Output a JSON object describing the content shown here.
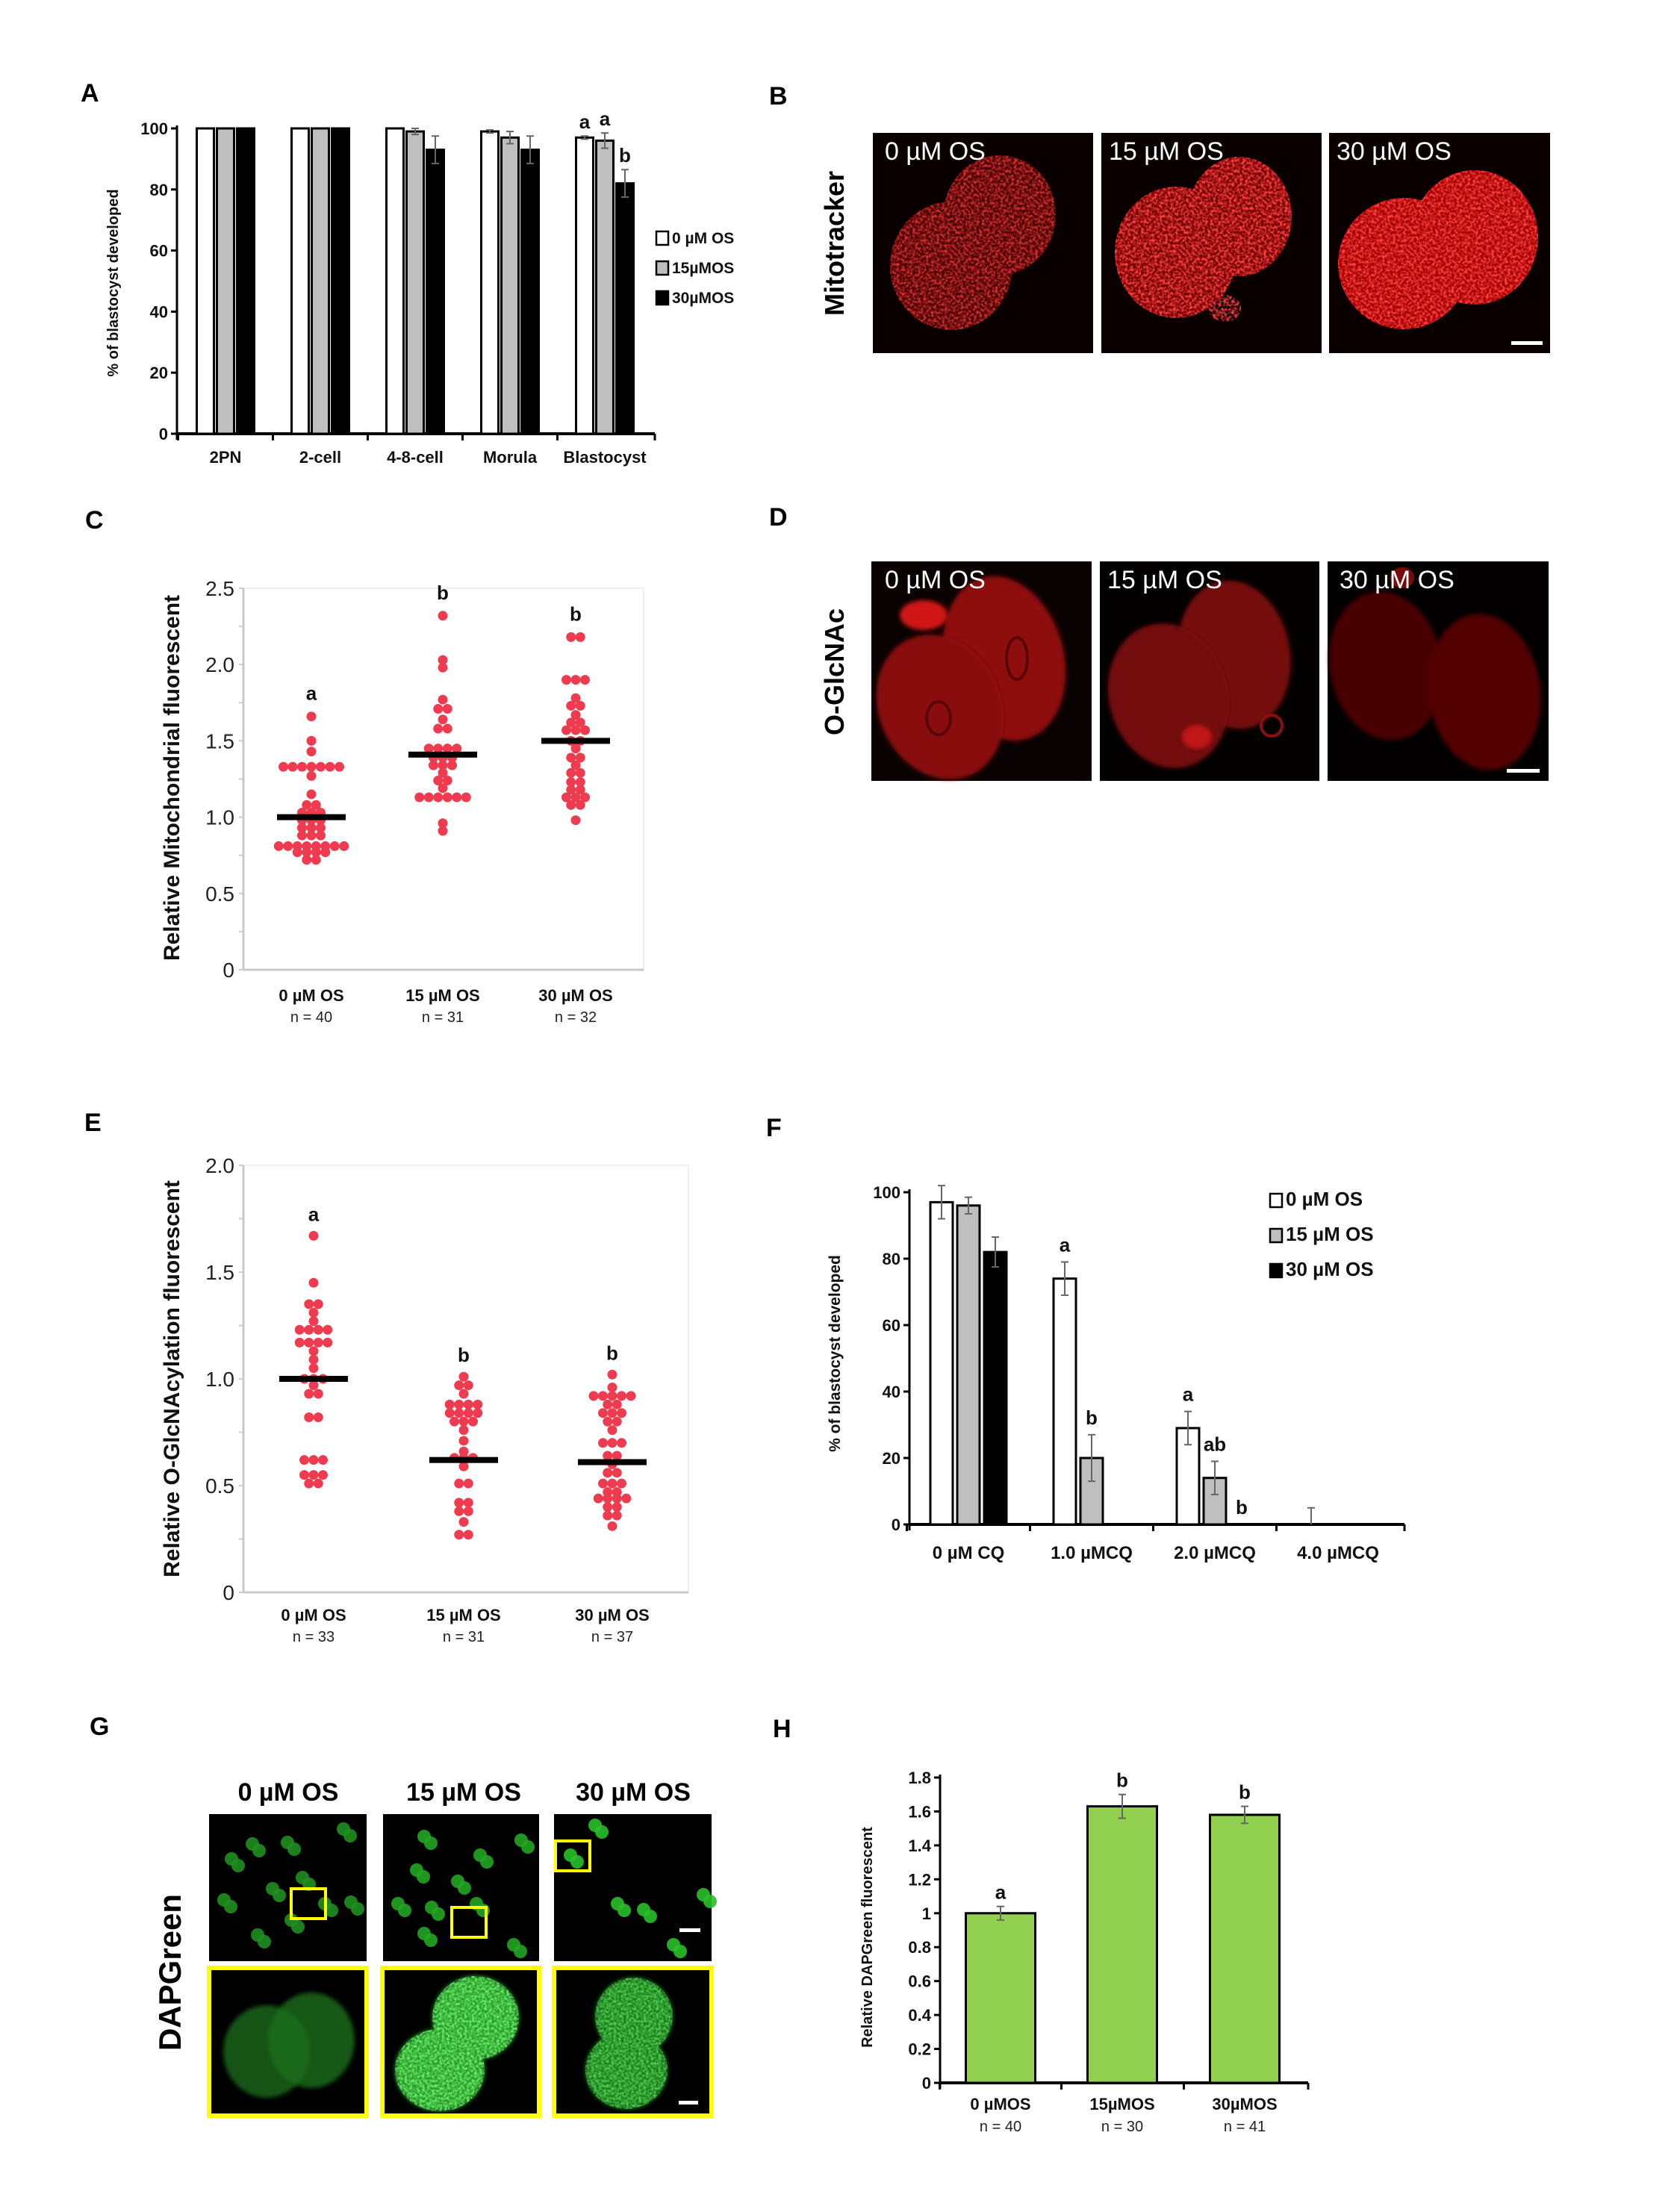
{
  "panels": {
    "A": "A",
    "B": "B",
    "C": "C",
    "D": "D",
    "E": "E",
    "F": "F",
    "G": "G",
    "H": "H"
  },
  "images": {
    "B": {
      "row_label": "Mitotracker",
      "conditions": [
        "0 µM OS",
        "15 µM OS",
        "30 µM OS"
      ],
      "stain_color": "#e00000"
    },
    "D": {
      "row_label": "O-GlcNAc",
      "conditions": [
        "0 µM OS",
        "15 µM OS",
        "30 µM OS"
      ],
      "stain_color": "#a00000"
    },
    "G": {
      "row_label": "DAPGreen",
      "conditions": [
        "0 µM OS",
        "15 µM OS",
        "30 µM OS"
      ],
      "stain_color": "#22c422",
      "inset_border_color": "#ffff00"
    }
  },
  "chart_data": [
    {
      "panel": "A",
      "type": "bar",
      "ylabel": "% of blastocyst developed",
      "ylim": [
        0,
        100
      ],
      "yticks": [
        0,
        20,
        40,
        60,
        80,
        100
      ],
      "ytick_labels": [
        "0",
        "20",
        "40",
        "60",
        "80",
        "100"
      ],
      "categories": [
        "2PN",
        "2-cell",
        "4-8-cell",
        "Morula",
        "Blastocyst"
      ],
      "legend_placement": "right",
      "series": [
        {
          "name": "0 µM OS",
          "color": "#ffffff",
          "values": [
            100,
            100,
            100,
            99,
            97
          ],
          "errors": [
            0,
            0,
            0,
            0.5,
            0.5
          ]
        },
        {
          "name": "15µMOS",
          "color": "#bfbfbf",
          "values": [
            100,
            100,
            99,
            97,
            96
          ],
          "errors": [
            0,
            0,
            1,
            2,
            2.5
          ]
        },
        {
          "name": "30µMOS",
          "color": "#000000",
          "values": [
            100,
            100,
            93,
            93,
            82
          ],
          "errors": [
            0,
            0,
            4.5,
            4.5,
            4.5
          ]
        }
      ],
      "letters": [
        {
          "category": 4,
          "series": 0,
          "text": "a"
        },
        {
          "category": 4,
          "series": 1,
          "text": "a"
        },
        {
          "category": 4,
          "series": 2,
          "text": "b"
        }
      ]
    },
    {
      "panel": "C",
      "type": "scatter",
      "ylabel": "Relative Mitochondrial fluorescent",
      "ylim": [
        0,
        2.5
      ],
      "yticks": [
        0,
        0.5,
        1.0,
        1.5,
        2.0,
        2.5
      ],
      "ytick_labels": [
        "0",
        "0.5",
        "1.0",
        "1.5",
        "2.0",
        "2.5"
      ],
      "categories": [
        "0 µM OS",
        "15 µM OS",
        "30 µM OS"
      ],
      "n_labels": [
        "n = 40",
        "n = 31",
        "n = 32"
      ],
      "point_color": "#ee3b4f",
      "groups": [
        {
          "mean": 1.0,
          "letter": "a",
          "values": [
            1.66,
            1.5,
            1.43,
            1.33,
            1.33,
            1.33,
            1.33,
            1.33,
            1.33,
            1.33,
            1.27,
            1.15,
            1.08,
            1.08,
            1.03,
            1.03,
            1.03,
            0.98,
            0.98,
            0.98,
            0.93,
            0.93,
            0.93,
            0.88,
            0.88,
            0.88,
            0.81,
            0.81,
            0.81,
            0.81,
            0.81,
            0.81,
            0.81,
            0.81,
            0.77,
            0.77,
            0.77,
            0.77,
            0.72,
            0.72
          ]
        },
        {
          "mean": 1.41,
          "letter": "b",
          "values": [
            2.32,
            2.03,
            1.98,
            1.77,
            1.71,
            1.71,
            1.64,
            1.58,
            1.58,
            1.45,
            1.45,
            1.45,
            1.45,
            1.39,
            1.39,
            1.39,
            1.34,
            1.34,
            1.34,
            1.29,
            1.24,
            1.24,
            1.19,
            1.13,
            1.13,
            1.13,
            1.13,
            1.13,
            1.13,
            0.96,
            0.91
          ]
        },
        {
          "mean": 1.5,
          "letter": "b",
          "values": [
            2.18,
            2.18,
            1.9,
            1.9,
            1.9,
            1.78,
            1.73,
            1.73,
            1.67,
            1.62,
            1.62,
            1.57,
            1.57,
            1.57,
            1.5,
            1.5,
            1.45,
            1.39,
            1.39,
            1.34,
            1.29,
            1.29,
            1.23,
            1.23,
            1.18,
            1.18,
            1.13,
            1.13,
            1.13,
            1.08,
            1.08,
            0.98
          ]
        }
      ]
    },
    {
      "panel": "E",
      "type": "scatter",
      "ylabel": "Relative O-GlcNAcylation fluorescent",
      "ylim": [
        0,
        2.0
      ],
      "yticks": [
        0,
        0.5,
        1.0,
        1.5,
        2.0
      ],
      "ytick_labels": [
        "0",
        "0.5",
        "1.0",
        "1.5",
        "2.0"
      ],
      "categories": [
        "0 µM OS",
        "15 µM OS",
        "30 µM OS"
      ],
      "n_labels": [
        "n = 33",
        "n = 31",
        "n = 37"
      ],
      "point_color": "#ee3b4f",
      "groups": [
        {
          "mean": 1.0,
          "letter": "a",
          "values": [
            1.67,
            1.45,
            1.35,
            1.35,
            1.31,
            1.27,
            1.23,
            1.23,
            1.23,
            1.23,
            1.17,
            1.17,
            1.17,
            1.17,
            1.13,
            1.09,
            1.05,
            1.0,
            1.0,
            1.0,
            0.97,
            0.93,
            0.93,
            0.82,
            0.82,
            0.62,
            0.62,
            0.62,
            0.55,
            0.55,
            0.55,
            0.51,
            0.51
          ]
        },
        {
          "mean": 0.62,
          "letter": "b",
          "values": [
            1.01,
            0.97,
            0.97,
            0.93,
            0.88,
            0.88,
            0.88,
            0.88,
            0.84,
            0.84,
            0.84,
            0.84,
            0.8,
            0.8,
            0.8,
            0.76,
            0.71,
            0.66,
            0.63,
            0.63,
            0.63,
            0.59,
            0.51,
            0.51,
            0.42,
            0.42,
            0.38,
            0.38,
            0.33,
            0.27,
            0.27
          ]
        },
        {
          "mean": 0.61,
          "letter": "b",
          "values": [
            1.02,
            0.96,
            0.92,
            0.92,
            0.92,
            0.92,
            0.92,
            0.88,
            0.88,
            0.84,
            0.84,
            0.84,
            0.8,
            0.8,
            0.76,
            0.7,
            0.7,
            0.7,
            0.64,
            0.64,
            0.6,
            0.56,
            0.56,
            0.51,
            0.51,
            0.51,
            0.47,
            0.47,
            0.44,
            0.44,
            0.44,
            0.44,
            0.4,
            0.4,
            0.36,
            0.36,
            0.31
          ]
        }
      ]
    },
    {
      "panel": "F",
      "type": "bar",
      "ylabel": "% of blastocyst developed",
      "ylim": [
        0,
        100
      ],
      "yticks": [
        0,
        20,
        40,
        60,
        80,
        100
      ],
      "ytick_labels": [
        "0",
        "20",
        "40",
        "60",
        "80",
        "100"
      ],
      "categories": [
        "0 µM CQ",
        "1.0 µMCQ",
        "2.0 µMCQ",
        "4.0 µMCQ"
      ],
      "legend_placement": "top-right",
      "series": [
        {
          "name": "0 µM OS",
          "color": "#ffffff",
          "values": [
            97,
            74,
            29,
            0
          ],
          "errors": [
            5,
            5,
            5,
            5
          ]
        },
        {
          "name": "15 µM OS",
          "color": "#bfbfbf",
          "values": [
            96,
            20,
            14,
            0
          ],
          "errors": [
            2.5,
            7,
            5,
            0
          ]
        },
        {
          "name": "30 µM OS",
          "color": "#000000",
          "values": [
            82,
            0,
            0,
            0
          ],
          "errors": [
            4.5,
            0,
            0,
            0
          ]
        }
      ],
      "letters": [
        {
          "category": 1,
          "series": 0,
          "text": "a"
        },
        {
          "category": 1,
          "series": 1,
          "text": "b"
        },
        {
          "category": 2,
          "series": 0,
          "text": "a"
        },
        {
          "category": 2,
          "series": 1,
          "text": "ab"
        },
        {
          "category": 2,
          "series": 2,
          "text": "b"
        }
      ]
    },
    {
      "panel": "H",
      "type": "bar",
      "ylabel": "Relative DAPGreen fluorescent",
      "ylim": [
        0,
        1.8
      ],
      "yticks": [
        0,
        0.2,
        0.4,
        0.6,
        0.8,
        1,
        1.2,
        1.4,
        1.6,
        1.8
      ],
      "ytick_labels": [
        "0",
        "0.2",
        "0.4",
        "0.6",
        "0.8",
        "1",
        "1.2",
        "1.4",
        "1.6",
        "1.8"
      ],
      "categories": [
        "0 µMOS",
        "15µMOS",
        "30µMOS"
      ],
      "n_labels": [
        "n = 40",
        "n = 30",
        "n = 41"
      ],
      "series": [
        {
          "color": "#92d050",
          "values": [
            1.0,
            1.63,
            1.58
          ],
          "errors": [
            0.04,
            0.07,
            0.05
          ]
        }
      ],
      "letters": [
        {
          "category": 0,
          "series": 0,
          "text": "a"
        },
        {
          "category": 1,
          "series": 0,
          "text": "b"
        },
        {
          "category": 2,
          "series": 0,
          "text": "b"
        }
      ]
    }
  ]
}
